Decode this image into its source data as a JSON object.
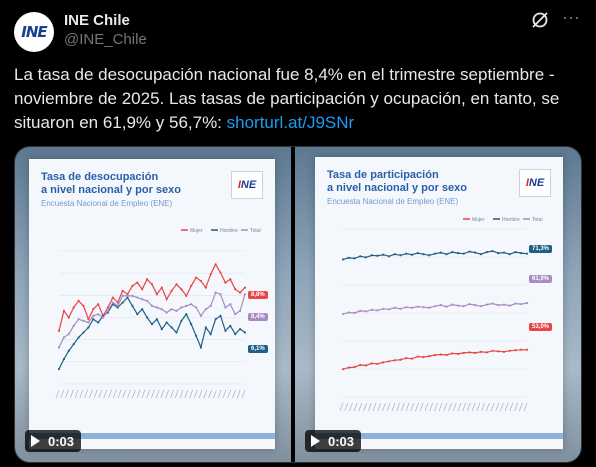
{
  "account": {
    "name": "INE Chile",
    "handle": "@INE_Chile",
    "avatar_text": "INE"
  },
  "tweet": {
    "text": "La tasa de desocupación nacional fue 8,4% en el trimestre septiembre - noviembre de 2025. Las tasas de participación y ocupación, en tanto, se situaron en 61,9% y 56,7%: ",
    "link": "shorturl.at/J9SNr"
  },
  "icons": {
    "grok": "grok-icon",
    "more": "more-options-icon",
    "play": "play-icon"
  },
  "colors": {
    "link": "#1d9bf0",
    "mujer": "#e84545",
    "hombre": "#1d5f86",
    "total": "#a98bc4",
    "title": "#2a5fa8"
  },
  "videos": [
    {
      "title": "Tasa de desocupación\na nivel nacional y por sexo",
      "subtitle": "Encuesta Nacional de Empleo (ENE)",
      "logo": "INE",
      "legend": [
        "Mujer",
        "Hombre",
        "Total"
      ],
      "labels": {
        "mujer": "8,8%",
        "total": "8,4%",
        "hombre": "6,1%"
      },
      "timestamp": "0:03"
    },
    {
      "title": "Tasa de participación\na nivel nacional y por sexo",
      "subtitle": "Encuesta Nacional de Empleo (ENE)",
      "logo": "INE",
      "legend": [
        "Mujer",
        "Hombre",
        "Total"
      ],
      "labels": {
        "hombre": "71,3%",
        "total": "61,9%",
        "mujer": "53,0%"
      },
      "timestamp": "0:03"
    }
  ],
  "chart_data": [
    {
      "type": "line",
      "series": [
        {
          "name": "Mujer",
          "values": [
            6.2,
            7.4,
            7.0,
            7.6,
            8.0,
            7.7,
            6.9,
            7.5,
            7.8,
            7.1,
            7.6,
            8.2,
            7.9,
            8.6,
            8.4,
            8.9,
            9.1,
            8.7,
            9.3,
            9.0,
            8.4,
            8.8,
            8.1,
            8.6,
            9.0,
            8.7,
            8.3,
            8.9,
            9.4,
            9.2,
            8.8,
            9.6,
            10.2,
            9.7,
            9.1,
            9.3,
            8.7,
            8.5,
            8.8
          ]
        },
        {
          "name": "Hombre",
          "values": [
            3.9,
            4.5,
            5.0,
            5.4,
            5.8,
            6.1,
            6.4,
            6.9,
            6.7,
            7.1,
            7.3,
            7.8,
            7.6,
            7.9,
            8.2,
            7.7,
            7.2,
            7.5,
            7.0,
            6.6,
            6.9,
            6.3,
            6.7,
            6.4,
            6.1,
            6.8,
            7.2,
            6.6,
            5.9,
            5.2,
            6.4,
            6.0,
            6.9,
            7.1,
            6.2,
            6.5,
            6.0,
            6.3,
            6.1
          ]
        },
        {
          "name": "Total",
          "values": [
            5.2,
            5.8,
            6.0,
            6.5,
            6.9,
            6.8,
            6.7,
            7.1,
            7.2,
            7.0,
            7.4,
            7.9,
            7.7,
            8.3,
            8.3,
            8.3,
            8.2,
            8.1,
            8.0,
            7.7,
            7.6,
            7.5,
            7.3,
            7.5,
            7.4,
            7.6,
            7.7,
            7.8,
            7.6,
            7.1,
            7.5,
            7.7,
            8.5,
            8.4,
            7.6,
            7.8,
            7.2,
            7.4,
            8.4
          ]
        }
      ],
      "ylim": [
        3,
        11
      ]
    },
    {
      "type": "line",
      "series": [
        {
          "name": "Hombre",
          "values": [
            70.2,
            70.5,
            70.4,
            70.8,
            70.6,
            71.0,
            70.9,
            71.1,
            70.8,
            71.2,
            71.0,
            71.3,
            71.1,
            71.4,
            71.2,
            71.0,
            71.3,
            71.5,
            71.2,
            71.6,
            71.4,
            71.3,
            71.7,
            71.5,
            71.2,
            71.6,
            71.8,
            71.4,
            71.5,
            71.2,
            71.6,
            71.4,
            71.3
          ]
        },
        {
          "name": "Total",
          "values": [
            59.8,
            60.1,
            60.0,
            60.4,
            60.3,
            60.6,
            60.5,
            60.8,
            60.7,
            61.0,
            60.8,
            61.1,
            61.0,
            61.2,
            61.1,
            61.0,
            61.3,
            61.5,
            61.2,
            61.6,
            61.4,
            61.3,
            61.7,
            61.5,
            61.3,
            61.6,
            61.8,
            61.5,
            61.6,
            61.4,
            61.8,
            61.7,
            61.9
          ]
        },
        {
          "name": "Mujer",
          "values": [
            49.3,
            49.6,
            49.7,
            50.1,
            50.0,
            50.4,
            50.3,
            50.6,
            50.8,
            51.0,
            51.1,
            51.4,
            51.3,
            51.7,
            51.6,
            51.8,
            52.0,
            52.1,
            52.0,
            52.3,
            52.2,
            52.4,
            52.5,
            52.4,
            52.6,
            52.5,
            52.8,
            52.7,
            52.6,
            52.8,
            52.9,
            53.0,
            53.0
          ]
        }
      ],
      "ylim": [
        44,
        76
      ]
    }
  ]
}
